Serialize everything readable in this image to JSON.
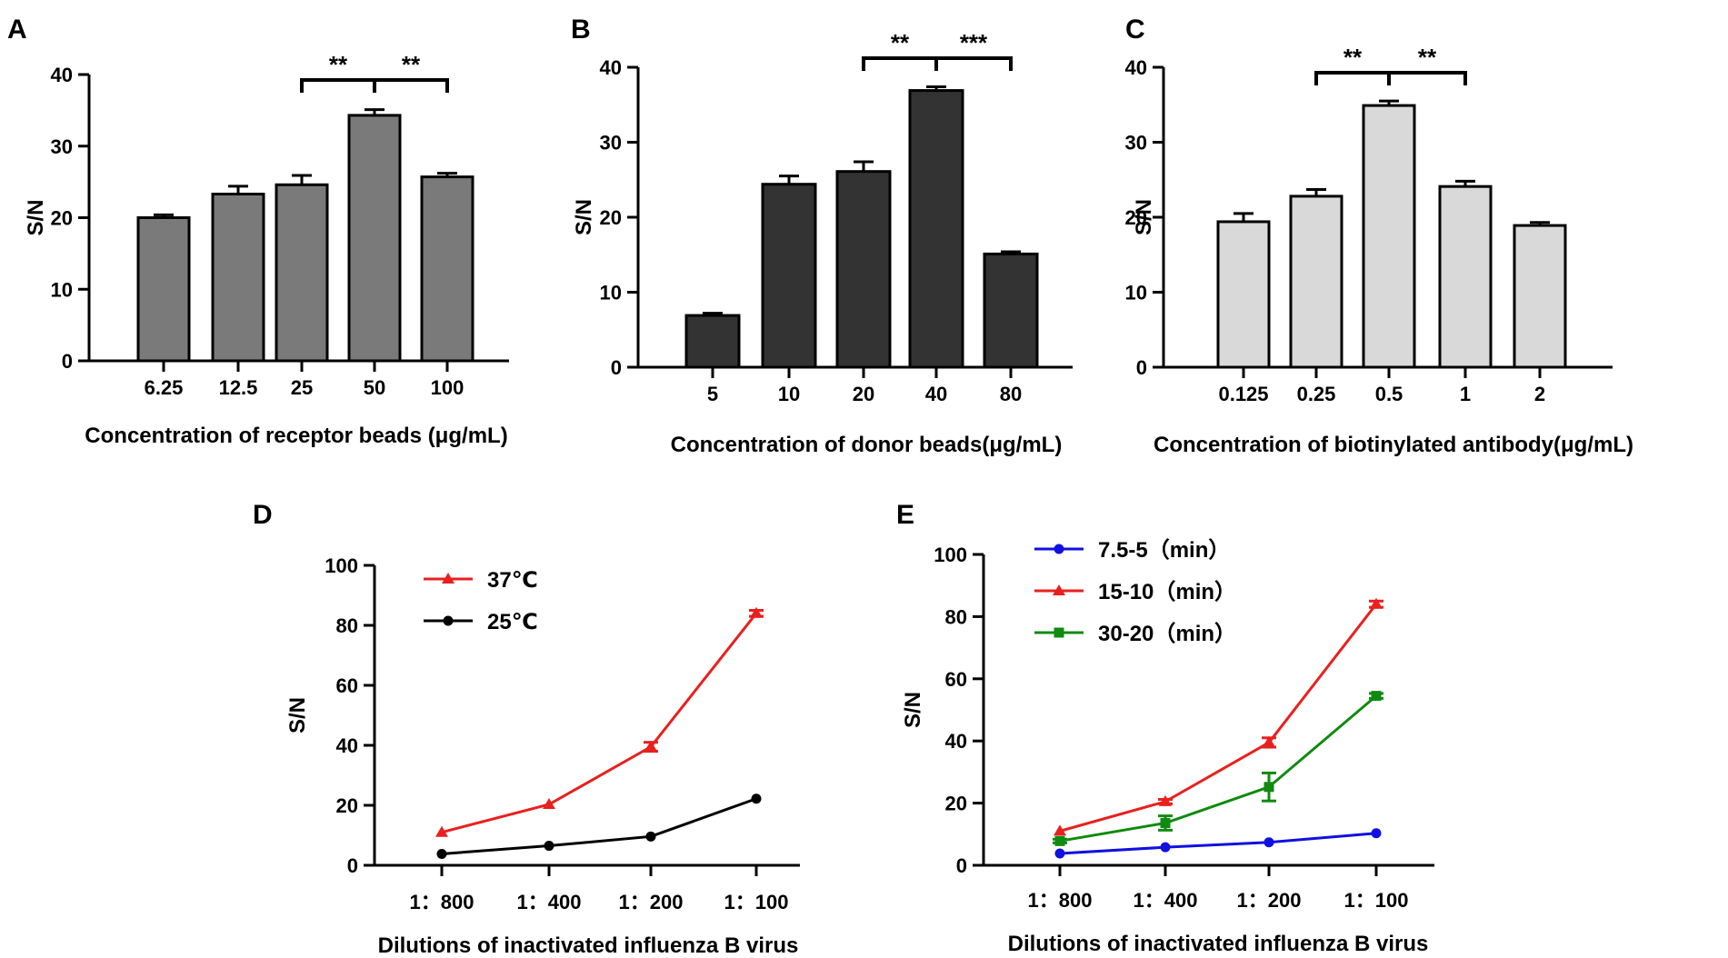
{
  "chart_data": [
    {
      "panel": "A",
      "type": "bar",
      "categories": [
        "6.25",
        "12.5",
        "25",
        "50",
        "100"
      ],
      "values": [
        20,
        23.3,
        24.6,
        34.3,
        25.7
      ],
      "errors": [
        0.4,
        1.1,
        1.3,
        0.8,
        0.5
      ],
      "ylim": [
        0,
        40
      ],
      "yticks": [
        "0",
        "10",
        "20",
        "30",
        "40"
      ],
      "ylabel": "S/N",
      "xlabel": "Concentration of receptor beads (μg/mL)",
      "color": "#7a7a7a",
      "significance": [
        {
          "from": 2,
          "to": 3,
          "label": "**"
        },
        {
          "from": 3,
          "to": 4,
          "label": "**"
        }
      ]
    },
    {
      "panel": "B",
      "type": "bar",
      "categories": [
        "5",
        "10",
        "20",
        "40",
        "80"
      ],
      "values": [
        6.9,
        24.4,
        26.1,
        36.9,
        15.1
      ],
      "errors": [
        0.3,
        1.1,
        1.3,
        0.5,
        0.3
      ],
      "ylim": [
        0,
        40
      ],
      "yticks": [
        "0",
        "10",
        "20",
        "30",
        "40"
      ],
      "ylabel": "S/N",
      "xlabel": "Concentration of donor beads(μg/mL)",
      "color": "#333333",
      "significance": [
        {
          "from": 2,
          "to": 3,
          "label": "**"
        },
        {
          "from": 3,
          "to": 4,
          "label": "***"
        }
      ]
    },
    {
      "panel": "C",
      "type": "bar",
      "categories": [
        "0.125",
        "0.25",
        "0.5",
        "1",
        "2"
      ],
      "values": [
        19.4,
        22.8,
        34.9,
        24.1,
        18.9
      ],
      "errors": [
        1.1,
        0.9,
        0.6,
        0.7,
        0.4
      ],
      "ylim": [
        0,
        40
      ],
      "yticks": [
        "0",
        "10",
        "20",
        "30",
        "40"
      ],
      "ylabel": "S/N",
      "xlabel": "Concentration of  biotinylated antibody(μg/mL)",
      "color": "#d9d9d9",
      "significance": [
        {
          "from": 1,
          "to": 2,
          "label": "**"
        },
        {
          "from": 2,
          "to": 3,
          "label": "**"
        }
      ]
    },
    {
      "panel": "D",
      "type": "line",
      "categories": [
        "1：800",
        "1：400",
        "1：200",
        "1：100"
      ],
      "ylim": [
        0,
        100
      ],
      "yticks": [
        "0",
        "20",
        "40",
        "60",
        "80",
        "100"
      ],
      "ylabel": "S/N",
      "xlabel": "Dilutions of inactivated influenza B virus",
      "series": [
        {
          "name": "37℃",
          "values": [
            11,
            20.3,
            39.5,
            84
          ],
          "errors": [
            0.5,
            0.6,
            1.5,
            1
          ],
          "color": "#e8201e",
          "marker": "triangle"
        },
        {
          "name": "25℃",
          "values": [
            3.8,
            6.5,
            9.6,
            22.2
          ],
          "errors": [
            0.3,
            0.4,
            0.4,
            0.4
          ],
          "color": "#000000",
          "marker": "circle"
        }
      ]
    },
    {
      "panel": "E",
      "type": "line",
      "categories": [
        "1：800",
        "1：400",
        "1：200",
        "1：100"
      ],
      "ylim": [
        0,
        100
      ],
      "yticks": [
        "0",
        "20",
        "40",
        "60",
        "80",
        "100"
      ],
      "ylabel": "S/N",
      "xlabel": "Dilutions of inactivated influenza B virus",
      "series": [
        {
          "name": "7.5-5（min）",
          "values": [
            3.8,
            5.8,
            7.4,
            10.3
          ],
          "errors": [
            0.3,
            0.3,
            0.4,
            0.4
          ],
          "color": "#1010e0",
          "marker": "circle"
        },
        {
          "name": "15-10（min）",
          "values": [
            11,
            20.5,
            39.5,
            84
          ],
          "errors": [
            0.5,
            0.7,
            1.5,
            1
          ],
          "color": "#e8201e",
          "marker": "triangle"
        },
        {
          "name": "30-20（min）",
          "values": [
            7.8,
            13.6,
            25.2,
            54.5
          ],
          "errors": [
            0.6,
            2.3,
            4.5,
            0.8
          ],
          "color": "#108a10",
          "marker": "square"
        }
      ]
    }
  ]
}
